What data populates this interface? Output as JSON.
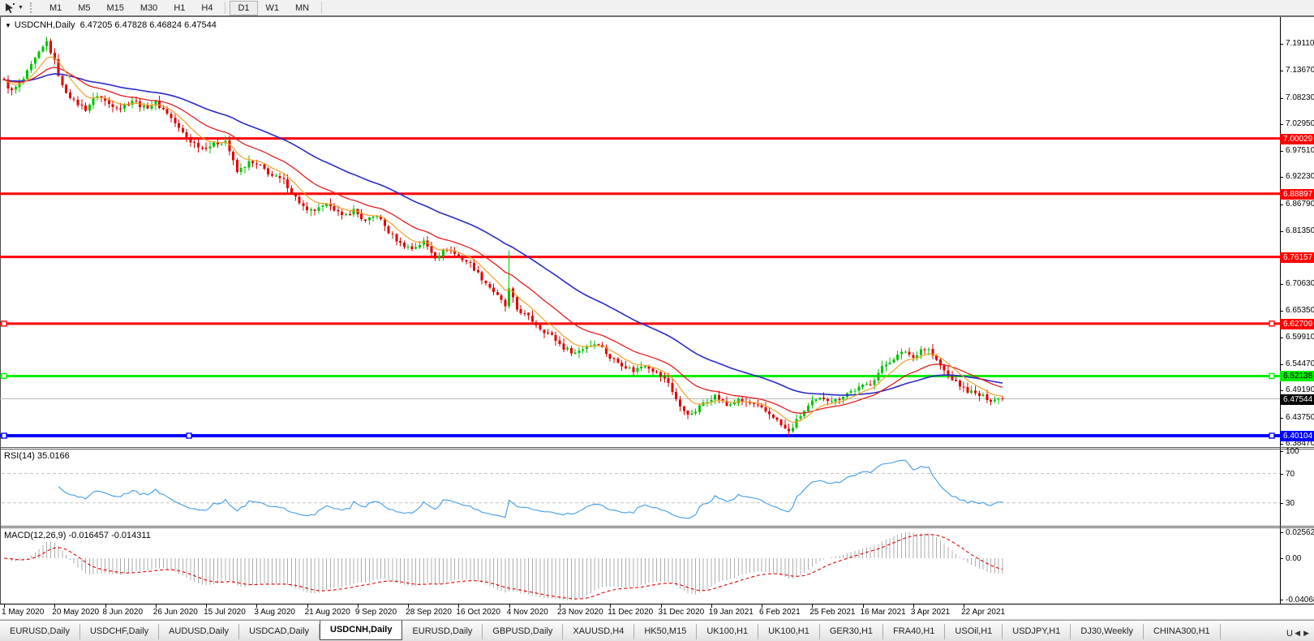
{
  "toolbar": {
    "tool_icon": "cursor-tool",
    "dropdown_icon": "chevron-down",
    "timeframes": [
      "M1",
      "M5",
      "M15",
      "M30",
      "H1",
      "H4",
      "D1",
      "W1",
      "MN"
    ],
    "active_timeframe": "D1"
  },
  "chart": {
    "collapse_icon": "triangle-down",
    "title": "USDCNH,Daily",
    "ohlc_text": "6.47205 6.47828 6.46824 6.47544"
  },
  "indicators": {
    "rsi_label": "RSI(14)",
    "rsi_value": "35.0166",
    "macd_label": "MACD(12,26,9)",
    "macd_values": "-0.016457 -0.014311"
  },
  "colors": {
    "bull": "#00C400",
    "bear": "#E00000",
    "ma_fast": "#F0A028",
    "ma_mid": "#E02020",
    "ma_slow": "#2A2AC8",
    "rsi_line": "#3E9BEA",
    "rsi_level": "#C4C4C4",
    "macd_hist": "#ACACAC",
    "macd_signal": "#DF0000",
    "current_line": "#B8B8B8"
  },
  "chart_data": {
    "type": "candlestick",
    "symbol": "USDCNH",
    "timeframe": "Daily",
    "ohlc": {
      "open": "6.47205",
      "high": "6.47828",
      "low": "6.46824",
      "close": "6.47544"
    },
    "y_ticks": [
      "7.19110",
      "7.13670",
      "7.08230",
      "7.02950",
      "6.97510",
      "6.92230",
      "6.86790",
      "6.81350",
      "6.70630",
      "6.65350",
      "6.59910",
      "6.54470",
      "6.49190",
      "6.43750",
      "6.38470"
    ],
    "hlines": [
      {
        "value": 7.00029,
        "label": "7.00029",
        "color": "#FF0000",
        "text_color": "#FFFFFF",
        "width": 3,
        "handles": false
      },
      {
        "value": 6.88897,
        "label": "6.88897",
        "color": "#FF0000",
        "text_color": "#FFFFFF",
        "width": 3,
        "handles": false
      },
      {
        "value": 6.76157,
        "label": "6.76157",
        "color": "#FF0000",
        "text_color": "#FFFFFF",
        "width": 3,
        "handles": false
      },
      {
        "value": 6.62709,
        "label": "6.62709",
        "color": "#FF0000",
        "text_color": "#FFFFFF",
        "width": 3,
        "handles": true
      },
      {
        "value": 6.52138,
        "label": "6.52138",
        "color": "#00EE00",
        "text_color": "#000000",
        "width": 3,
        "handles": true
      },
      {
        "value": 6.40104,
        "label": "6.40104",
        "color": "#0000FF",
        "text_color": "#FFFFFF",
        "width": 4,
        "handles": true,
        "extra_handle_x": 233
      }
    ],
    "current_price": {
      "value": 6.47544,
      "label": "6.47544",
      "tag_bg": "#000000",
      "tag_text": "#FFFFFF"
    },
    "candle_count": 258,
    "price_anchors": [
      [
        0,
        7.115
      ],
      [
        2,
        7.095
      ],
      [
        5,
        7.12
      ],
      [
        8,
        7.16
      ],
      [
        11,
        7.195
      ],
      [
        13,
        7.155
      ],
      [
        15,
        7.105
      ],
      [
        18,
        7.075
      ],
      [
        21,
        7.06
      ],
      [
        24,
        7.088
      ],
      [
        27,
        7.07
      ],
      [
        30,
        7.062
      ],
      [
        33,
        7.078
      ],
      [
        36,
        7.062
      ],
      [
        39,
        7.072
      ],
      [
        42,
        7.052
      ],
      [
        45,
        7.02
      ],
      [
        48,
        6.995
      ],
      [
        51,
        6.982
      ],
      [
        54,
        6.988
      ],
      [
        57,
        6.996
      ],
      [
        60,
        6.932
      ],
      [
        63,
        6.952
      ],
      [
        66,
        6.944
      ],
      [
        69,
        6.925
      ],
      [
        72,
        6.915
      ],
      [
        75,
        6.882
      ],
      [
        78,
        6.852
      ],
      [
        81,
        6.858
      ],
      [
        84,
        6.868
      ],
      [
        87,
        6.842
      ],
      [
        90,
        6.856
      ],
      [
        93,
        6.832
      ],
      [
        96,
        6.846
      ],
      [
        99,
        6.812
      ],
      [
        102,
        6.788
      ],
      [
        105,
        6.778
      ],
      [
        108,
        6.792
      ],
      [
        111,
        6.762
      ],
      [
        114,
        6.778
      ],
      [
        117,
        6.762
      ],
      [
        120,
        6.748
      ],
      [
        123,
        6.718
      ],
      [
        126,
        6.692
      ],
      [
        129,
        6.662
      ],
      [
        130,
        6.695
      ],
      [
        132,
        6.656
      ],
      [
        135,
        6.64
      ],
      [
        138,
        6.618
      ],
      [
        141,
        6.602
      ],
      [
        144,
        6.578
      ],
      [
        147,
        6.568
      ],
      [
        150,
        6.582
      ],
      [
        153,
        6.588
      ],
      [
        156,
        6.558
      ],
      [
        159,
        6.545
      ],
      [
        162,
        6.532
      ],
      [
        165,
        6.545
      ],
      [
        168,
        6.528
      ],
      [
        171,
        6.508
      ],
      [
        174,
        6.458
      ],
      [
        177,
        6.442
      ],
      [
        180,
        6.468
      ],
      [
        183,
        6.482
      ],
      [
        186,
        6.462
      ],
      [
        189,
        6.472
      ],
      [
        192,
        6.466
      ],
      [
        195,
        6.455
      ],
      [
        198,
        6.44
      ],
      [
        200,
        6.422
      ],
      [
        202,
        6.408
      ],
      [
        205,
        6.442
      ],
      [
        208,
        6.468
      ],
      [
        211,
        6.477
      ],
      [
        214,
        6.472
      ],
      [
        217,
        6.487
      ],
      [
        220,
        6.497
      ],
      [
        223,
        6.507
      ],
      [
        226,
        6.538
      ],
      [
        229,
        6.558
      ],
      [
        232,
        6.572
      ],
      [
        234,
        6.558
      ],
      [
        236,
        6.576
      ],
      [
        238,
        6.574
      ],
      [
        240,
        6.552
      ],
      [
        242,
        6.532
      ],
      [
        245,
        6.508
      ],
      [
        248,
        6.492
      ],
      [
        251,
        6.482
      ],
      [
        254,
        6.474
      ],
      [
        257,
        6.47544
      ]
    ],
    "spike": {
      "day": 130,
      "high": 6.775
    },
    "low_anchor": {
      "day": 202,
      "low": 6.40104
    },
    "ma_periods": {
      "fast": 8,
      "mid": 21,
      "slow": 50
    },
    "rsi": {
      "period": 14,
      "value": "35.0166",
      "levels": [
        "100",
        "70",
        "30"
      ]
    },
    "macd": {
      "fast": 12,
      "slow": 26,
      "signal": 9,
      "axis": [
        "0.025623",
        "0.00",
        "-0.040687"
      ]
    },
    "dates": [
      "1 May 2020",
      "20 May 2020",
      "8 Jun 2020",
      "26 Jun 2020",
      "15 Jul 2020",
      "3 Aug 2020",
      "21 Aug 2020",
      "9 Sep 2020",
      "28 Sep 2020",
      "16 Oct 2020",
      "4 Nov 2020",
      "23 Nov 2020",
      "11 Dec 2020",
      "31 Dec 2020",
      "19 Jan 2021",
      "6 Feb 2021",
      "25 Feb 2021",
      "16 Mar 2021",
      "3 Apr 2021",
      "22 Apr 2021"
    ]
  },
  "tabs": {
    "items": [
      "EURUSD,Daily",
      "USDCHF,Daily",
      "AUDUSD,Daily",
      "USDCAD,Daily",
      "USDCNH,Daily",
      "EURUSD,Daily",
      "GBPUSD,Daily",
      "XAUUSD,H4",
      "HK50,M15",
      "UK100,H1",
      "UK100,H1",
      "GER30,H1",
      "FRA40,H1",
      "USOil,H1",
      "USDJPY,H1",
      "DJ30,Weekly",
      "CHINA300,H1"
    ],
    "active_index": 4,
    "overflow_label": "U",
    "scroll_left_icon": "arrow-left",
    "scroll_right_icon": "arrow-right"
  }
}
